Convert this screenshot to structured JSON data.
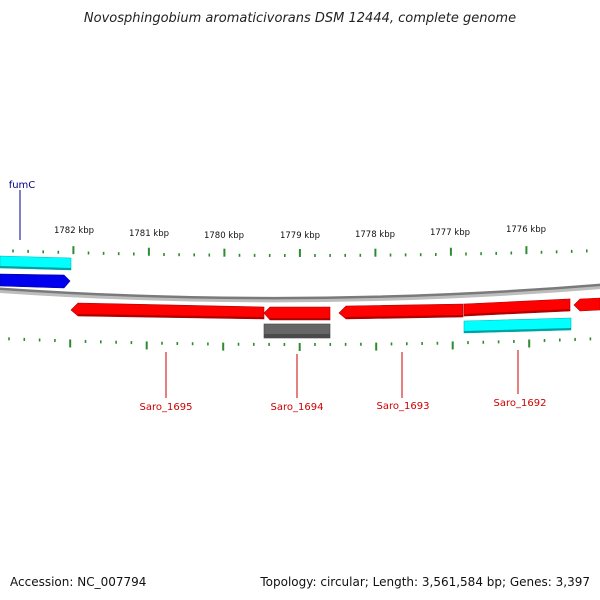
{
  "title": "Novosphingobium aromaticivorans DSM 12444, complete genome",
  "accession": "Accession: NC_007794",
  "topology": "Topology: circular; Length: 3,561,584 bp; Genes: 3,397",
  "colors": {
    "backbone": "#8a8a8a",
    "tick": "#2e8b2e",
    "cds": "#ff0000",
    "rna": "#00ffff",
    "gene_blue": "#0000ee",
    "pseudo": "#666666",
    "label_blue": "#00008b",
    "label_red": "#cc0000"
  },
  "ticks": [
    {
      "label": "1782 kbp"
    },
    {
      "label": "1781 kbp"
    },
    {
      "label": "1780 kbp"
    },
    {
      "label": "1779 kbp"
    },
    {
      "label": "1778 kbp"
    },
    {
      "label": "1777 kbp"
    },
    {
      "label": "1776 kbp"
    }
  ],
  "features": [
    {
      "name": "fumC",
      "type": "gene",
      "color_key": "gene_blue",
      "label_color_key": "label_blue"
    },
    {
      "name": "",
      "type": "rna",
      "color_key": "rna"
    },
    {
      "name": "Saro_1695",
      "type": "cds",
      "color_key": "cds",
      "label_color_key": "label_red"
    },
    {
      "name": "Saro_1694",
      "type": "cds",
      "color_key": "cds",
      "label_color_key": "label_red"
    },
    {
      "name": "",
      "type": "pseudo",
      "color_key": "pseudo"
    },
    {
      "name": "Saro_1693",
      "type": "cds",
      "color_key": "cds",
      "label_color_key": "label_red"
    },
    {
      "name": "Saro_1692",
      "type": "cds",
      "color_key": "cds",
      "label_color_key": "label_red"
    },
    {
      "name": "",
      "type": "rna",
      "color_key": "rna"
    },
    {
      "name": "",
      "type": "cds",
      "color_key": "cds"
    }
  ]
}
